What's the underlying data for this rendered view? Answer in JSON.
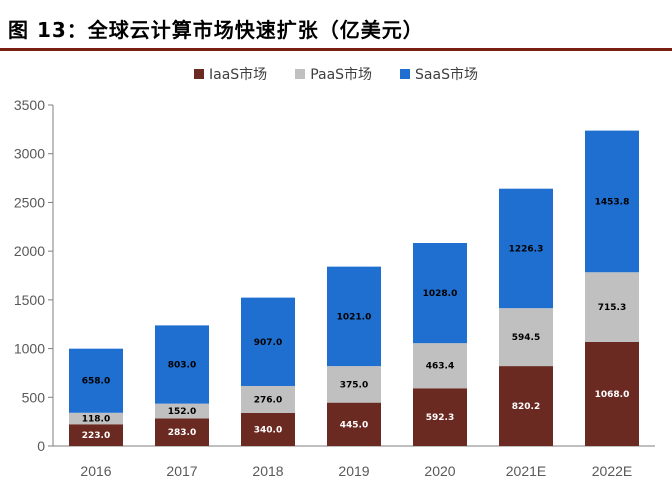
{
  "header": {
    "title": "图 13：全球云计算市场快速扩张（亿美元）"
  },
  "colors": {
    "rule": "#7a1f14",
    "iaas": "#6b2a21",
    "paas": "#c0c0c0",
    "saas": "#1f6fd1"
  },
  "chart_data": {
    "type": "bar",
    "stacked": true,
    "categories": [
      "2016",
      "2017",
      "2018",
      "2019",
      "2020",
      "2021E",
      "2022E"
    ],
    "series": [
      {
        "name": "IaaS市场",
        "color": "#6b2a21",
        "values": [
          223.0,
          283.0,
          340.0,
          445.0,
          592.3,
          820.2,
          1068.0
        ],
        "labels": [
          "223.0",
          "283.0",
          "340.0",
          "445.0",
          "592.3",
          "820.2",
          "1068.0"
        ]
      },
      {
        "name": "PaaS市场",
        "color": "#c0c0c0",
        "values": [
          118.0,
          152.0,
          276.0,
          375.0,
          463.4,
          594.5,
          715.3
        ],
        "labels": [
          "118.0",
          "152.0",
          "276.0",
          "375.0",
          "463.4",
          "594.5",
          "715.3"
        ]
      },
      {
        "name": "SaaS市场",
        "color": "#1f6fd1",
        "values": [
          658.0,
          803.0,
          907.0,
          1021.0,
          1028.0,
          1226.3,
          1453.8
        ],
        "labels": [
          "658.0",
          "803.0",
          "907.0",
          "1021.0",
          "1028.0",
          "1226.3",
          "1453.8"
        ]
      }
    ],
    "ylim": [
      0,
      3500
    ],
    "yticks": [
      "0",
      "500",
      "1000",
      "1500",
      "2000",
      "2500",
      "3000",
      "3500"
    ],
    "grid": false,
    "legend_position": "top-center"
  }
}
